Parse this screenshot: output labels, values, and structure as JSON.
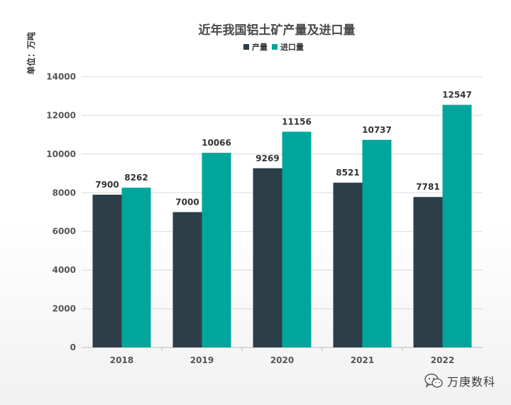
{
  "chart_data": {
    "type": "bar",
    "title": "近年我国铝土矿产量及进口量",
    "unit_label": "单位：万吨",
    "categories": [
      "2018",
      "2019",
      "2020",
      "2021",
      "2022"
    ],
    "series": [
      {
        "name": "产量",
        "color": "#2c3f48",
        "values": [
          7900,
          7000,
          9269,
          8521,
          7781
        ]
      },
      {
        "name": "进口量",
        "color": "#00a59b",
        "values": [
          8262,
          10066,
          11156,
          10737,
          12547
        ]
      }
    ],
    "ylim": [
      0,
      14000
    ],
    "yticks": [
      0,
      2000,
      4000,
      6000,
      8000,
      10000,
      12000,
      14000
    ],
    "grid": true,
    "legend_position": "top-center"
  },
  "watermark": {
    "text": "万庚数科",
    "icon": "wechat-icon"
  }
}
